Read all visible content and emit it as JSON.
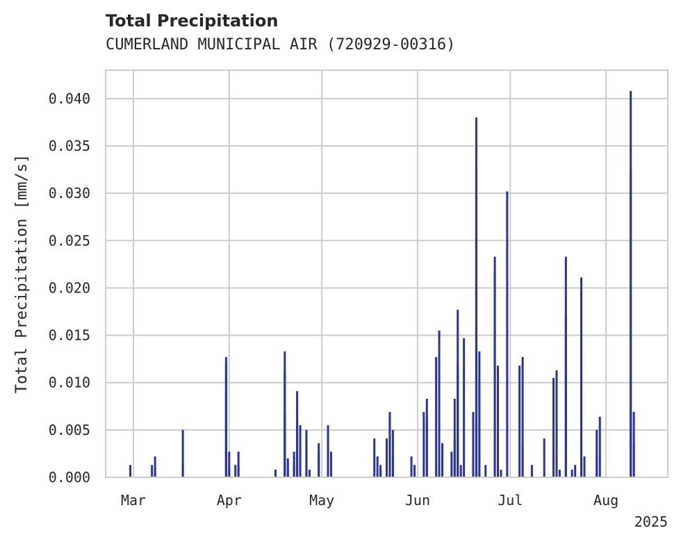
{
  "header": {
    "title": "Total Precipitation",
    "subtitle": "CUMERLAND MUNICIPAL AIR (720929-00316)"
  },
  "colors": {
    "bar": "#29339b",
    "grid": "#cccccc",
    "text": "#262626"
  },
  "chart_data": {
    "type": "bar",
    "title": "Total Precipitation",
    "subtitle": "CUMERLAND MUNICIPAL AIR (720929-00316)",
    "xlabel": "",
    "ylabel": "Total Precipitation [mm/s]",
    "ylim": [
      0,
      0.043
    ],
    "yticks": [
      "0.000",
      "0.005",
      "0.010",
      "0.015",
      "0.020",
      "0.025",
      "0.030",
      "0.035",
      "0.040"
    ],
    "xlim": [
      "2025-02-20",
      "2025-08-21"
    ],
    "xticks": [
      {
        "date": "2025-03-01",
        "label": "Mar"
      },
      {
        "date": "2025-04-01",
        "label": "Apr"
      },
      {
        "date": "2025-05-01",
        "label": "May"
      },
      {
        "date": "2025-06-01",
        "label": "Jun"
      },
      {
        "date": "2025-07-01",
        "label": "Jul"
      },
      {
        "date": "2025-08-01",
        "label": "Aug"
      }
    ],
    "year_label": "2025",
    "grid": true,
    "series": [
      {
        "points": [
          [
            "2025-02-28",
            0.0013
          ],
          [
            "2025-03-07",
            0.0013
          ],
          [
            "2025-03-08",
            0.0022
          ],
          [
            "2025-03-08",
            0.001
          ],
          [
            "2025-03-17",
            0.0013
          ],
          [
            "2025-03-17",
            0.005
          ],
          [
            "2025-03-31",
            0.009
          ],
          [
            "2025-03-31",
            0.0127
          ],
          [
            "2025-03-31",
            0.012
          ],
          [
            "2025-04-01",
            0.0027
          ],
          [
            "2025-04-01",
            0.0008
          ],
          [
            "2025-04-03",
            0.0013
          ],
          [
            "2025-04-04",
            0.0027
          ],
          [
            "2025-04-04",
            0.0013
          ],
          [
            "2025-04-16",
            0.0008
          ],
          [
            "2025-04-16",
            0.0008
          ],
          [
            "2025-04-19",
            0.007
          ],
          [
            "2025-04-19",
            0.0113
          ],
          [
            "2025-04-19",
            0.0133
          ],
          [
            "2025-04-20",
            0.002
          ],
          [
            "2025-04-20",
            0.0008
          ],
          [
            "2025-04-22",
            0.0013
          ],
          [
            "2025-04-22",
            0.0027
          ],
          [
            "2025-04-23",
            0.0091
          ],
          [
            "2025-04-23",
            0.006
          ],
          [
            "2025-04-24",
            0.0055
          ],
          [
            "2025-04-24",
            0.0027
          ],
          [
            "2025-04-26",
            0.005
          ],
          [
            "2025-04-26",
            0.004
          ],
          [
            "2025-04-27",
            0.0008
          ],
          [
            "2025-04-30",
            0.0036
          ],
          [
            "2025-04-30",
            0.0027
          ],
          [
            "2025-05-03",
            0.0055
          ],
          [
            "2025-05-03",
            0.004
          ],
          [
            "2025-05-04",
            0.0027
          ],
          [
            "2025-05-04",
            0.0008
          ],
          [
            "2025-05-18",
            0.0041
          ],
          [
            "2025-05-19",
            0.0022
          ],
          [
            "2025-05-20",
            0.0013
          ],
          [
            "2025-05-20",
            0.0008
          ],
          [
            "2025-05-22",
            0.0041
          ],
          [
            "2025-05-23",
            0.0069
          ],
          [
            "2025-05-23",
            0.0063
          ],
          [
            "2025-05-24",
            0.005
          ],
          [
            "2025-05-24",
            0.0022
          ],
          [
            "2025-05-30",
            0.0022
          ],
          [
            "2025-05-31",
            0.0013
          ],
          [
            "2025-06-03",
            0.0069
          ],
          [
            "2025-06-04",
            0.0083
          ],
          [
            "2025-06-04",
            0.0063
          ],
          [
            "2025-06-07",
            0.0127
          ],
          [
            "2025-06-08",
            0.0155
          ],
          [
            "2025-06-08",
            0.0008
          ],
          [
            "2025-06-09",
            0.0036
          ],
          [
            "2025-06-09",
            0.0027
          ],
          [
            "2025-06-12",
            0.0027
          ],
          [
            "2025-06-13",
            0.004
          ],
          [
            "2025-06-13",
            0.0083
          ],
          [
            "2025-06-14",
            0.0177
          ],
          [
            "2025-06-14",
            0.012
          ],
          [
            "2025-06-15",
            0.0013
          ],
          [
            "2025-06-16",
            0.0147
          ],
          [
            "2025-06-19",
            0.0069
          ],
          [
            "2025-06-20",
            0.0325
          ],
          [
            "2025-06-20",
            0.038
          ],
          [
            "2025-06-21",
            0.0133
          ],
          [
            "2025-06-21",
            0.01
          ],
          [
            "2025-06-23",
            0.0013
          ],
          [
            "2025-06-26",
            0.0233
          ],
          [
            "2025-06-26",
            0.0219
          ],
          [
            "2025-06-27",
            0.0118
          ],
          [
            "2025-06-27",
            0.0036
          ],
          [
            "2025-06-28",
            0.0008
          ],
          [
            "2025-06-30",
            0.0302
          ],
          [
            "2025-07-04",
            0.0118
          ],
          [
            "2025-07-05",
            0.0036
          ],
          [
            "2025-07-05",
            0.0127
          ],
          [
            "2025-07-08",
            0.0013
          ],
          [
            "2025-07-12",
            0.0041
          ],
          [
            "2025-07-15",
            0.0105
          ],
          [
            "2025-07-16",
            0.0113
          ],
          [
            "2025-07-16",
            0.0036
          ],
          [
            "2025-07-17",
            0.0008
          ],
          [
            "2025-07-19",
            0.017
          ],
          [
            "2025-07-19",
            0.0233
          ],
          [
            "2025-07-19",
            0.0013
          ],
          [
            "2025-07-21",
            0.0008
          ],
          [
            "2025-07-22",
            0.0013
          ],
          [
            "2025-07-24",
            0.015
          ],
          [
            "2025-07-24",
            0.0211
          ],
          [
            "2025-07-25",
            0.0022
          ],
          [
            "2025-07-29",
            0.005
          ],
          [
            "2025-07-29",
            0.0022
          ],
          [
            "2025-07-30",
            0.0064
          ],
          [
            "2025-08-09",
            0.0325
          ],
          [
            "2025-08-09",
            0.0408
          ],
          [
            "2025-08-10",
            0.0069
          ],
          [
            "2025-08-10",
            0.0036
          ]
        ]
      }
    ]
  }
}
